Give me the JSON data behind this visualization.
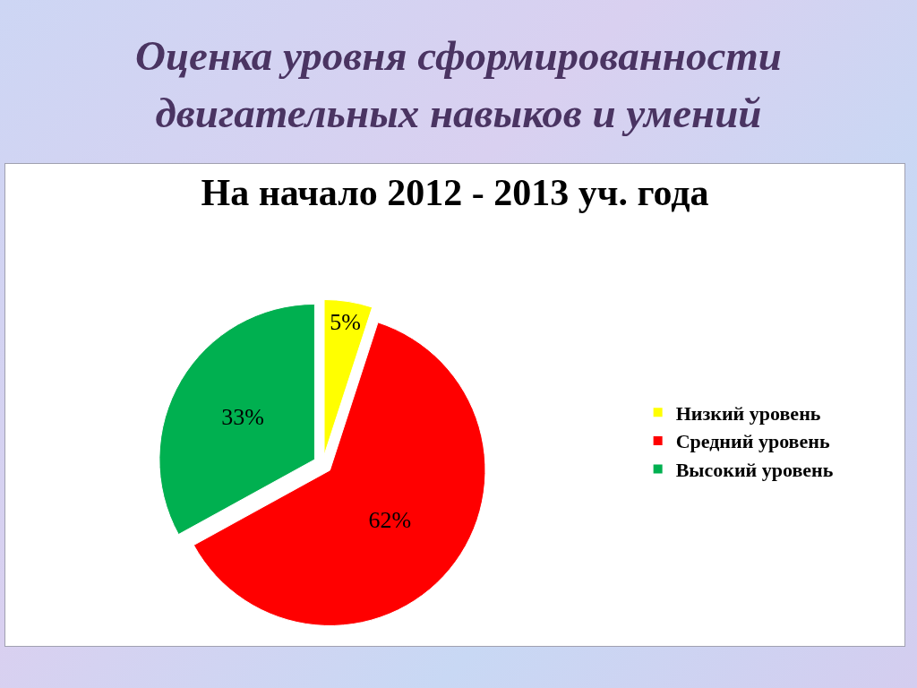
{
  "chart_data": {
    "type": "pie",
    "title": "Оценка уровня сформированности двигательных навыков и умений",
    "subtitle": "На начало 2012 - 2013 уч. года",
    "categories": [
      "Низкий уровень",
      "Средний уровень",
      "Высокий уровень"
    ],
    "values": [
      5,
      62,
      33
    ],
    "colors": [
      "#ffff00",
      "#ff0000",
      "#00b050"
    ],
    "value_labels": [
      "5%",
      "62%",
      "33%"
    ],
    "legend": "right"
  }
}
